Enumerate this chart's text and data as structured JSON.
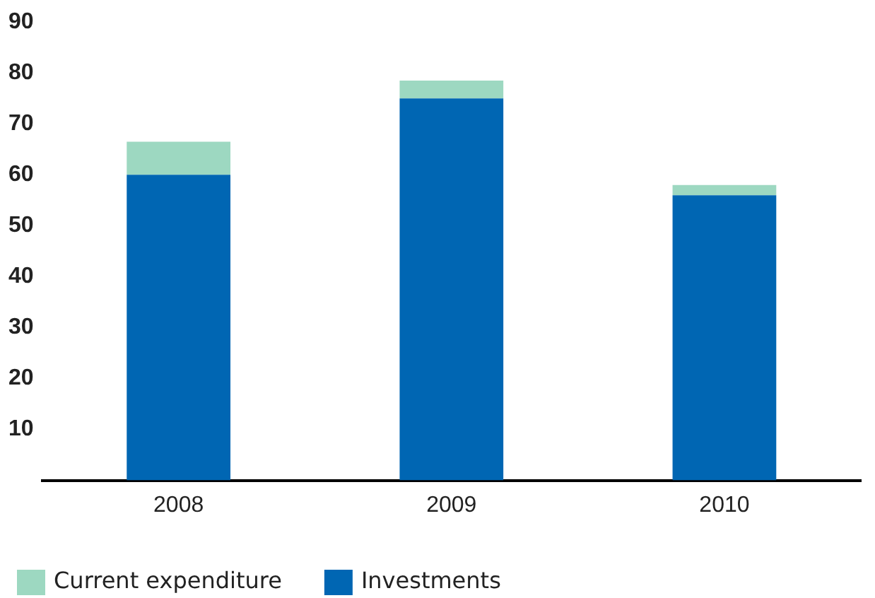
{
  "chart_data": {
    "type": "bar",
    "stacked": true,
    "categories": [
      "2008",
      "2009",
      "2010"
    ],
    "series": [
      {
        "name": "Investments",
        "color": "#0066b3",
        "values": [
          60,
          75,
          56
        ]
      },
      {
        "name": "Current expenditure",
        "color": "#9dd8c1",
        "values": [
          6.5,
          3.5,
          2
        ]
      }
    ],
    "ylim": [
      0,
      90
    ],
    "yticks": [
      10,
      20,
      30,
      40,
      50,
      60,
      70,
      80,
      90
    ],
    "grid": false,
    "legend": "bottom left"
  }
}
